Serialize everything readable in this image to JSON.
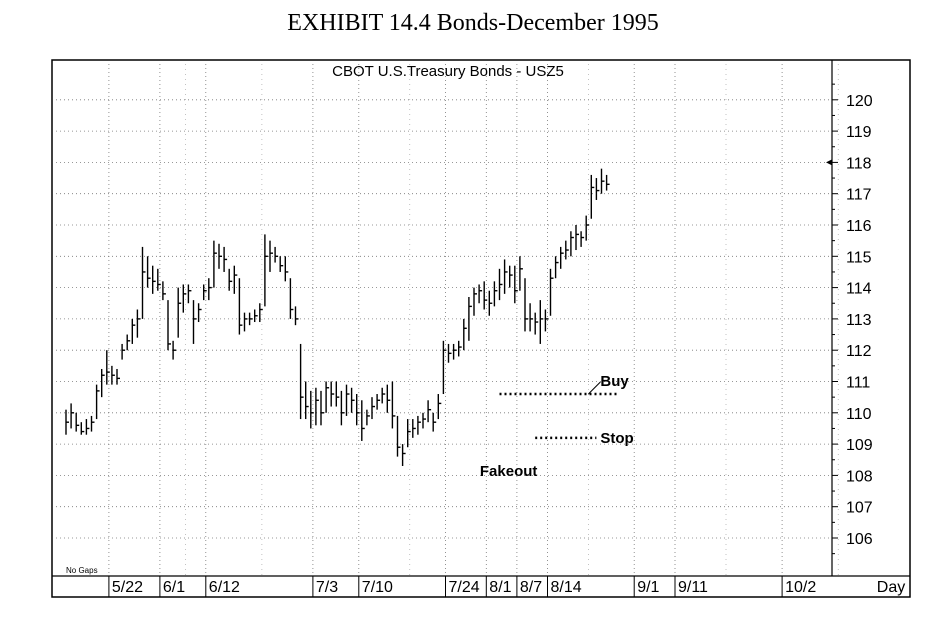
{
  "exhibit_title": "EXHIBIT 14.4 Bonds-December 1995",
  "chart_data": {
    "type": "ohlc",
    "title": "CBOT U.S.Treasury Bonds - USZ5",
    "xlabel": "Day",
    "ylabel": "",
    "ylim": [
      105,
      121
    ],
    "y_ticks": [
      106,
      107,
      108,
      109,
      110,
      111,
      112,
      113,
      114,
      115,
      116,
      117,
      118,
      119,
      120
    ],
    "x_ticks": [
      "5/22",
      "6/1",
      "6/12",
      "7/3",
      "7/10",
      "7/24",
      "8/1",
      "8/7",
      "8/14",
      "9/1",
      "9/11",
      "10/2"
    ],
    "x_tick_index": [
      9,
      19,
      28,
      49,
      58,
      75,
      83,
      89,
      95,
      112,
      120,
      141
    ],
    "grid": true,
    "legend": "none",
    "corner_note": "No Gaps",
    "last_price_marker": 118,
    "annotations": [
      {
        "text": "Buy",
        "x_index": 104,
        "y": 110.6,
        "line_start_index": 85,
        "line_end_index": 108
      },
      {
        "text": "Stop",
        "x_index": 104,
        "y": 109.2,
        "line_start_index": 92,
        "line_end_index": 104
      },
      {
        "text": "Fakeout",
        "x_index": 94,
        "y": 108.5
      }
    ],
    "bars": [
      {
        "h": 110.1,
        "l": 109.3,
        "c": 109.7
      },
      {
        "h": 110.3,
        "l": 109.5,
        "c": 110.0
      },
      {
        "h": 110.0,
        "l": 109.4,
        "c": 109.6
      },
      {
        "h": 109.7,
        "l": 109.3,
        "c": 109.4
      },
      {
        "h": 109.8,
        "l": 109.3,
        "c": 109.5
      },
      {
        "h": 109.9,
        "l": 109.4,
        "c": 109.7
      },
      {
        "h": 110.9,
        "l": 109.8,
        "c": 110.7
      },
      {
        "h": 111.4,
        "l": 110.5,
        "c": 111.2
      },
      {
        "h": 112.0,
        "l": 110.9,
        "c": 111.3
      },
      {
        "h": 111.5,
        "l": 110.9,
        "c": 111.2
      },
      {
        "h": 111.4,
        "l": 110.9,
        "c": 111.1
      },
      {
        "h": 112.2,
        "l": 111.7,
        "c": 112.0
      },
      {
        "h": 112.5,
        "l": 112.0,
        "c": 112.3
      },
      {
        "h": 113.0,
        "l": 112.2,
        "c": 112.8
      },
      {
        "h": 113.3,
        "l": 112.4,
        "c": 113.0
      },
      {
        "h": 115.3,
        "l": 113.0,
        "c": 114.5
      },
      {
        "h": 115.0,
        "l": 114.0,
        "c": 114.3
      },
      {
        "h": 114.7,
        "l": 113.8,
        "c": 114.2
      },
      {
        "h": 114.6,
        "l": 113.9,
        "c": 114.1
      },
      {
        "h": 114.2,
        "l": 113.6,
        "c": 113.8
      },
      {
        "h": 113.6,
        "l": 112.0,
        "c": 112.2
      },
      {
        "h": 112.3,
        "l": 111.7,
        "c": 112.0
      },
      {
        "h": 114.0,
        "l": 112.4,
        "c": 113.5
      },
      {
        "h": 114.1,
        "l": 113.2,
        "c": 113.8
      },
      {
        "h": 114.1,
        "l": 113.5,
        "c": 113.9
      },
      {
        "h": 113.6,
        "l": 112.2,
        "c": 113.0
      },
      {
        "h": 113.5,
        "l": 112.9,
        "c": 113.3
      },
      {
        "h": 114.1,
        "l": 113.6,
        "c": 113.9
      },
      {
        "h": 114.3,
        "l": 113.6,
        "c": 114.0
      },
      {
        "h": 115.5,
        "l": 114.0,
        "c": 115.1
      },
      {
        "h": 115.4,
        "l": 114.6,
        "c": 115.0
      },
      {
        "h": 115.3,
        "l": 114.5,
        "c": 114.9
      },
      {
        "h": 114.6,
        "l": 113.9,
        "c": 114.2
      },
      {
        "h": 114.7,
        "l": 113.8,
        "c": 114.4
      },
      {
        "h": 114.3,
        "l": 112.5,
        "c": 112.8
      },
      {
        "h": 113.2,
        "l": 112.6,
        "c": 113.0
      },
      {
        "h": 113.2,
        "l": 112.8,
        "c": 113.0
      },
      {
        "h": 113.3,
        "l": 112.9,
        "c": 113.1
      },
      {
        "h": 113.5,
        "l": 112.9,
        "c": 113.3
      },
      {
        "h": 115.7,
        "l": 113.4,
        "c": 115.0
      },
      {
        "h": 115.5,
        "l": 114.5,
        "c": 115.1
      },
      {
        "h": 115.3,
        "l": 114.8,
        "c": 115.0
      },
      {
        "h": 115.0,
        "l": 114.5,
        "c": 114.7
      },
      {
        "h": 115.0,
        "l": 114.2,
        "c": 114.5
      },
      {
        "h": 114.3,
        "l": 113.0,
        "c": 113.3
      },
      {
        "h": 113.4,
        "l": 112.8,
        "c": 113.0
      },
      {
        "h": 112.2,
        "l": 109.8,
        "c": 110.5
      },
      {
        "h": 111.0,
        "l": 109.8,
        "c": 110.2
      },
      {
        "h": 110.7,
        "l": 109.5,
        "c": 110.0
      },
      {
        "h": 110.8,
        "l": 109.6,
        "c": 110.4
      },
      {
        "h": 110.7,
        "l": 109.6,
        "c": 110.0
      },
      {
        "h": 111.0,
        "l": 110.0,
        "c": 110.8
      },
      {
        "h": 111.0,
        "l": 110.2,
        "c": 110.6
      },
      {
        "h": 111.0,
        "l": 110.2,
        "c": 110.5
      },
      {
        "h": 110.7,
        "l": 109.6,
        "c": 110.0
      },
      {
        "h": 110.9,
        "l": 109.9,
        "c": 110.6
      },
      {
        "h": 110.8,
        "l": 110.0,
        "c": 110.4
      },
      {
        "h": 110.6,
        "l": 109.6,
        "c": 110.0
      },
      {
        "h": 110.4,
        "l": 109.1,
        "c": 109.5
      },
      {
        "h": 110.1,
        "l": 109.6,
        "c": 109.9
      },
      {
        "h": 110.5,
        "l": 109.8,
        "c": 110.2
      },
      {
        "h": 110.6,
        "l": 110.1,
        "c": 110.4
      },
      {
        "h": 110.8,
        "l": 110.3,
        "c": 110.6
      },
      {
        "h": 110.9,
        "l": 110.0,
        "c": 110.4
      },
      {
        "h": 111.0,
        "l": 109.5,
        "c": 109.9
      },
      {
        "h": 109.9,
        "l": 108.6,
        "c": 108.9
      },
      {
        "h": 109.0,
        "l": 108.3,
        "c": 108.7
      },
      {
        "h": 109.8,
        "l": 108.9,
        "c": 109.4
      },
      {
        "h": 109.8,
        "l": 109.2,
        "c": 109.5
      },
      {
        "h": 109.9,
        "l": 109.3,
        "c": 109.7
      },
      {
        "h": 110.0,
        "l": 109.5,
        "c": 109.8
      },
      {
        "h": 110.4,
        "l": 109.7,
        "c": 110.1
      },
      {
        "h": 110.0,
        "l": 109.4,
        "c": 109.7
      },
      {
        "h": 110.6,
        "l": 109.8,
        "c": 110.3
      },
      {
        "h": 112.3,
        "l": 110.6,
        "c": 112.0
      },
      {
        "h": 112.2,
        "l": 111.6,
        "c": 111.9
      },
      {
        "h": 112.2,
        "l": 111.7,
        "c": 112.0
      },
      {
        "h": 112.3,
        "l": 111.8,
        "c": 112.1
      },
      {
        "h": 113.0,
        "l": 112.0,
        "c": 112.7
      },
      {
        "h": 113.7,
        "l": 112.3,
        "c": 113.4
      },
      {
        "h": 114.0,
        "l": 113.1,
        "c": 113.8
      },
      {
        "h": 114.1,
        "l": 113.5,
        "c": 113.9
      },
      {
        "h": 114.2,
        "l": 113.3,
        "c": 113.6
      },
      {
        "h": 113.9,
        "l": 113.1,
        "c": 113.5
      },
      {
        "h": 114.2,
        "l": 113.4,
        "c": 113.9
      },
      {
        "h": 114.6,
        "l": 113.6,
        "c": 114.1
      },
      {
        "h": 114.9,
        "l": 113.8,
        "c": 114.5
      },
      {
        "h": 114.7,
        "l": 114.0,
        "c": 114.4
      },
      {
        "h": 114.7,
        "l": 113.5,
        "c": 113.9
      },
      {
        "h": 115.0,
        "l": 113.9,
        "c": 114.6
      },
      {
        "h": 114.3,
        "l": 112.6,
        "c": 113.0
      },
      {
        "h": 113.5,
        "l": 112.6,
        "c": 113.0
      },
      {
        "h": 113.2,
        "l": 112.5,
        "c": 112.9
      },
      {
        "h": 113.6,
        "l": 112.2,
        "c": 113.0
      },
      {
        "h": 113.3,
        "l": 112.6,
        "c": 113.0
      },
      {
        "h": 114.6,
        "l": 113.1,
        "c": 114.3
      },
      {
        "h": 115.0,
        "l": 114.3,
        "c": 114.8
      },
      {
        "h": 115.3,
        "l": 114.6,
        "c": 115.1
      },
      {
        "h": 115.5,
        "l": 114.9,
        "c": 115.2
      },
      {
        "h": 115.8,
        "l": 115.0,
        "c": 115.6
      },
      {
        "h": 116.0,
        "l": 115.2,
        "c": 115.7
      },
      {
        "h": 115.8,
        "l": 115.3,
        "c": 115.6
      },
      {
        "h": 116.3,
        "l": 115.5,
        "c": 116.0
      },
      {
        "h": 117.6,
        "l": 116.2,
        "c": 117.2
      },
      {
        "h": 117.5,
        "l": 116.8,
        "c": 117.1
      },
      {
        "h": 117.8,
        "l": 117.0,
        "c": 117.4
      },
      {
        "h": 117.6,
        "l": 117.1,
        "c": 117.3
      }
    ]
  }
}
